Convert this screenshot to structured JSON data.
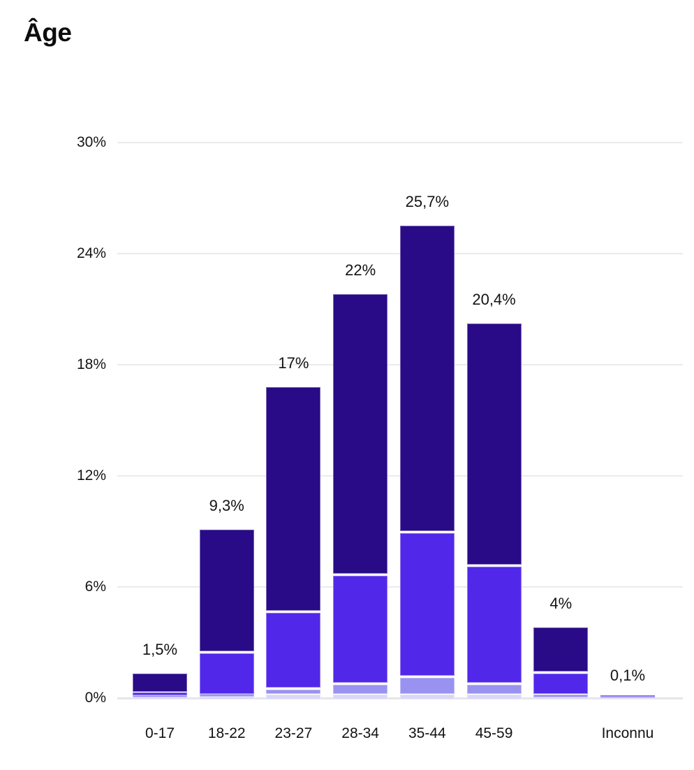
{
  "page": {
    "title": "Âge"
  },
  "chart_data": {
    "type": "bar",
    "stacked": true,
    "orientation": "vertical",
    "title": "Âge",
    "categories": [
      "0-17",
      "18-22",
      "23-27",
      "28-34",
      "35-44",
      "45-59",
      "",
      "Inconnu"
    ],
    "bar_total_labels": [
      "1,5%",
      "9,3%",
      "17%",
      "22%",
      "25,7%",
      "20,4%",
      "4%",
      "0,1%"
    ],
    "bar_totals": [
      1.5,
      9.3,
      17,
      22,
      25.7,
      20.4,
      4,
      0.1
    ],
    "series": [
      {
        "name": "segment-lavender",
        "color": "#dad6f7",
        "values": [
          0.12,
          0.15,
          0.3,
          0.3,
          0.3,
          0.3,
          0.12,
          0.04
        ]
      },
      {
        "name": "segment-periwinkle",
        "color": "#9a92f1",
        "values": [
          0.12,
          0.15,
          0.35,
          0.6,
          1.0,
          0.6,
          0.2,
          0.03
        ]
      },
      {
        "name": "segment-violet",
        "color": "#5128ea",
        "values": [
          0.16,
          2.3,
          4.15,
          5.9,
          7.8,
          6.4,
          1.18,
          0.03
        ]
      },
      {
        "name": "segment-navy",
        "color": "#290a87",
        "values": [
          1.1,
          6.7,
          12.2,
          15.2,
          16.6,
          13.1,
          2.5,
          0.0
        ]
      }
    ],
    "y_axis": {
      "range": [
        0,
        30
      ],
      "grid": true,
      "ticks": [
        {
          "label": "30%",
          "value": 30
        },
        {
          "label": "24%",
          "value": 24
        },
        {
          "label": "18%",
          "value": 18
        },
        {
          "label": "12%",
          "value": 12
        },
        {
          "label": "6%",
          "value": 6
        },
        {
          "label": "0%",
          "value": 0
        }
      ]
    },
    "legend": null
  },
  "colors": {
    "gridline": "#ebeaee",
    "zero_line": "#e6e5e9",
    "text": "#131313",
    "background": "#ffffff"
  }
}
